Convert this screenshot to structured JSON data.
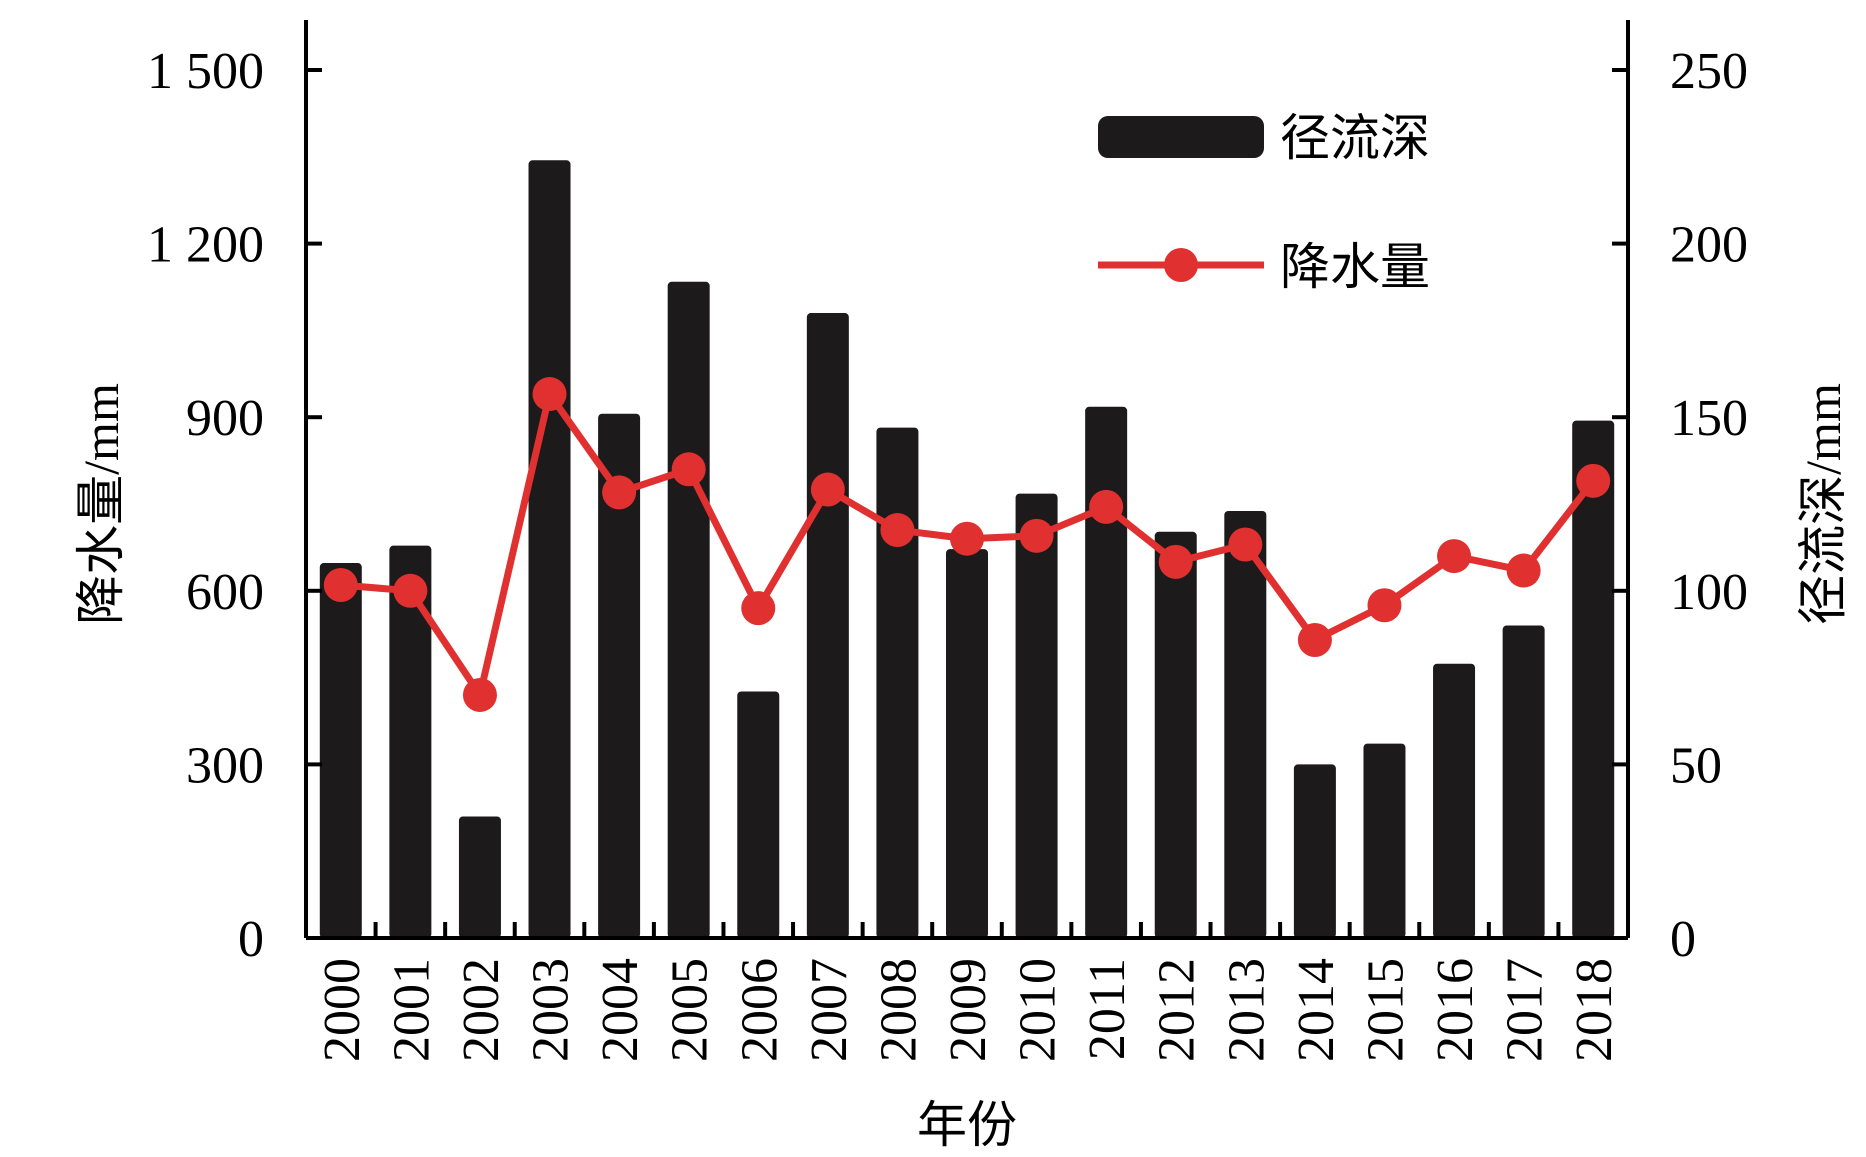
{
  "chart_data": {
    "type": "bar+line",
    "categories": [
      "2000",
      "2001",
      "2002",
      "2003",
      "2004",
      "2005",
      "2006",
      "2007",
      "2008",
      "2009",
      "2010",
      "2011",
      "2012",
      "2013",
      "2014",
      "2015",
      "2016",
      "2017",
      "2018"
    ],
    "xlabel": "年份",
    "left_axis": {
      "label": "降水量/mm",
      "range": [
        0,
        1500
      ],
      "ticks": [
        0,
        300,
        600,
        900,
        1200,
        1500
      ],
      "tick_labels": [
        "0",
        "300",
        "600",
        "900",
        "1 200",
        "1 500"
      ]
    },
    "right_axis": {
      "label": "径流深/mm",
      "range": [
        0,
        250
      ],
      "ticks": [
        0,
        50,
        100,
        150,
        200,
        250
      ],
      "tick_labels": [
        "0",
        "50",
        "100",
        "150",
        "200",
        "250"
      ]
    },
    "series": [
      {
        "name": "径流深",
        "type": "bar",
        "axis": "right",
        "color": "#1c1a1a",
        "values": [
          108,
          113,
          35,
          224,
          151,
          189,
          71,
          180,
          147,
          112,
          128,
          153,
          117,
          123,
          50,
          56,
          79,
          90,
          149
        ]
      },
      {
        "name": "降水量",
        "type": "line",
        "axis": "left",
        "color": "#e03030",
        "values": [
          610,
          600,
          420,
          940,
          770,
          810,
          570,
          775,
          705,
          690,
          695,
          745,
          650,
          680,
          515,
          575,
          660,
          635,
          790
        ]
      }
    ],
    "legend": {
      "position": "top-right"
    },
    "grid": false
  }
}
